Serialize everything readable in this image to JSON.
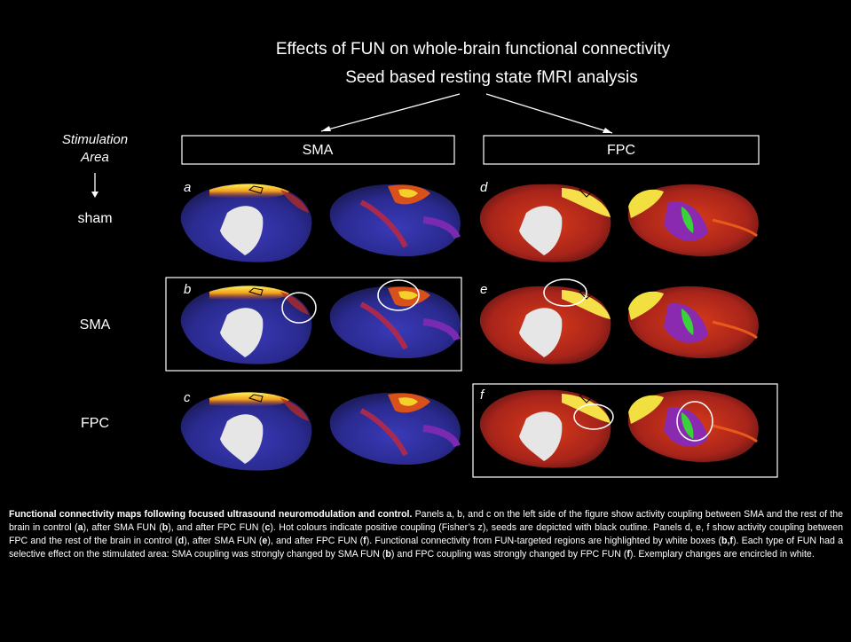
{
  "header": {
    "title": "Effects of FUN on whole-brain functional connectivity",
    "subtitle": "Seed based resting state fMRI analysis"
  },
  "columns": [
    "SMA",
    "FPC"
  ],
  "row_header": [
    "Stimulation",
    "Area"
  ],
  "rows": [
    "sham",
    "SMA",
    "FPC"
  ],
  "panels": [
    "a",
    "b",
    "c",
    "d",
    "e",
    "f"
  ],
  "caption": [
    {
      "text": "Functional connectivity maps following focused ultrasound neuromodulation and control.",
      "bold": true
    },
    {
      "text": " Panels a, b, and c on the left side of the figure show activity coupling between SMA and the rest of the brain in control (",
      "bold": false
    },
    {
      "text": "a",
      "bold": true
    },
    {
      "text": "), after SMA FUN (",
      "bold": false
    },
    {
      "text": "b",
      "bold": true
    },
    {
      "text": "), and after FPC FUN (",
      "bold": false
    },
    {
      "text": "c",
      "bold": true
    },
    {
      "text": "). Hot colours indicate positive coupling (Fisher’s z), seeds are depicted with black outline. Panels d, e, f show activity coupling between FPC and the rest of the brain in control (",
      "bold": false
    },
    {
      "text": "d",
      "bold": true
    },
    {
      "text": "), after SMA FUN (",
      "bold": false
    },
    {
      "text": "e",
      "bold": true
    },
    {
      "text": "), and after FPC FUN (",
      "bold": false
    },
    {
      "text": "f",
      "bold": true
    },
    {
      "text": "). Functional connectivity from FUN-targeted regions are highlighted by white boxes (",
      "bold": false
    },
    {
      "text": "b,f",
      "bold": true
    },
    {
      "text": "). Each type of FUN had a selective effect on the stimulated area: SMA coupling was strongly changed by SMA FUN (",
      "bold": false
    },
    {
      "text": "b",
      "bold": true
    },
    {
      "text": ") and FPC coupling was strongly changed by FPC FUN (",
      "bold": false
    },
    {
      "text": "f",
      "bold": true
    },
    {
      "text": "). Exemplary changes are encircled in white.",
      "bold": false
    }
  ]
}
